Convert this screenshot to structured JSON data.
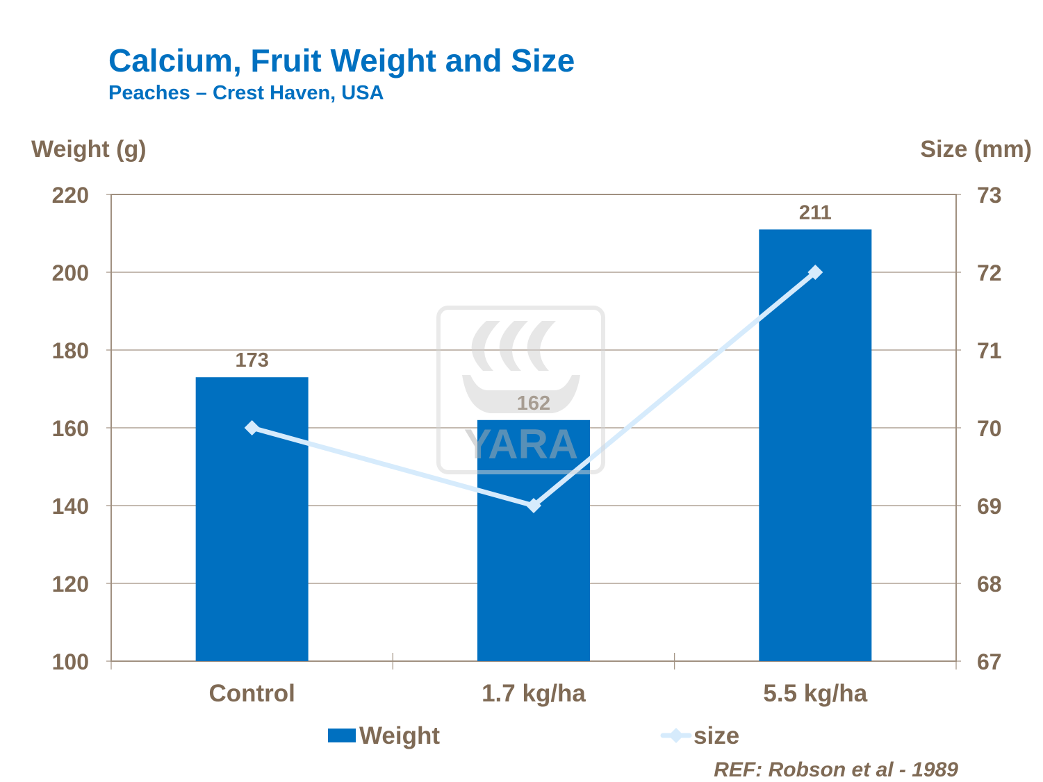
{
  "chart_data": {
    "type": "bar+line",
    "title": "Calcium, Fruit Weight and Size",
    "subtitle": "Peaches  – Crest Haven, USA",
    "ylabel": "Weight (g)",
    "y2label": "Size (mm)",
    "categories": [
      "Control",
      "1.7 kg/ha",
      "5.5 kg/ha"
    ],
    "ylim": [
      100,
      220
    ],
    "yticks": [
      100,
      120,
      140,
      160,
      180,
      200,
      220
    ],
    "y2lim": [
      67,
      73
    ],
    "y2ticks": [
      67,
      68,
      69,
      70,
      71,
      72,
      73
    ],
    "grid": true,
    "legend_placement": "bottom",
    "series": [
      {
        "name": "Weight",
        "type": "bar",
        "axis": "left",
        "values": [
          173,
          162,
          211
        ],
        "data_labels": [
          "173",
          "162",
          "211"
        ],
        "color": "#0070C0"
      },
      {
        "name": "size",
        "type": "line",
        "axis": "right",
        "values": [
          70,
          69,
          72
        ],
        "color": "#D6EBFC"
      }
    ],
    "annotation": "REF:  Robson et al - 1989"
  },
  "watermark": {
    "text": "YARA"
  },
  "colors": {
    "text": "#7F6A55",
    "title": "#0070C0",
    "grid": "#A09080"
  }
}
